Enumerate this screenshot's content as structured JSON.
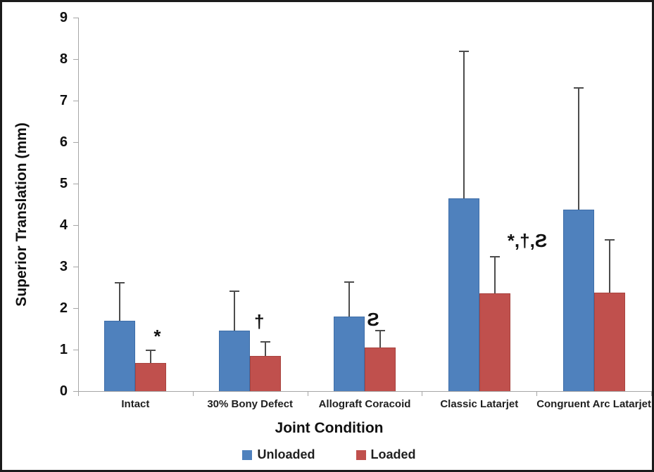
{
  "chart_data": {
    "type": "bar",
    "title": "",
    "xlabel": "Joint Condition",
    "ylabel": "Superior Translation (mm)",
    "ylim": [
      0,
      9
    ],
    "ytick_step": 1,
    "grid": false,
    "legend_position": "bottom",
    "categories": [
      "Intact",
      "30% Bony Defect",
      "Allograft Coracoid",
      "Classic Latarjet",
      "Congruent Arc Latarjet"
    ],
    "series": [
      {
        "name": "Unloaded",
        "color": "#4F81BD",
        "border_color": "#3d6da8",
        "values": [
          1.7,
          1.45,
          1.8,
          4.65,
          4.38
        ],
        "error_tops": [
          2.62,
          2.42,
          2.65,
          8.2,
          7.33
        ]
      },
      {
        "name": "Loaded",
        "color": "#C0504D",
        "border_color": "#a8433f",
        "values": [
          0.67,
          0.85,
          1.05,
          2.35,
          2.38
        ],
        "error_tops": [
          1.0,
          1.2,
          1.47,
          3.25,
          3.66
        ]
      }
    ],
    "annotations": [
      {
        "group_index": 0,
        "group": "Intact",
        "text": "*",
        "y_value": 1.55
      },
      {
        "group_index": 1,
        "group": "30% Bony Defect",
        "text": "†",
        "y_value": 1.9
      },
      {
        "group_index": 2,
        "group": "Allograft Coracoid",
        "text": "Ƨ",
        "y_value": 1.95
      },
      {
        "group_index": 3,
        "group": "Classic Latarjet",
        "text": "*,†,Ƨ",
        "y_value": 3.85
      }
    ]
  },
  "axis": {
    "y_tick_labels": [
      "0",
      "1",
      "2",
      "3",
      "4",
      "5",
      "6",
      "7",
      "8",
      "9"
    ],
    "axis_color": "#a6a6a6",
    "error_bar_color": "#4d4d4d"
  },
  "legend": {
    "items": [
      {
        "label": "Unloaded",
        "color": "#4F81BD"
      },
      {
        "label": "Loaded",
        "color": "#C0504D"
      }
    ]
  }
}
